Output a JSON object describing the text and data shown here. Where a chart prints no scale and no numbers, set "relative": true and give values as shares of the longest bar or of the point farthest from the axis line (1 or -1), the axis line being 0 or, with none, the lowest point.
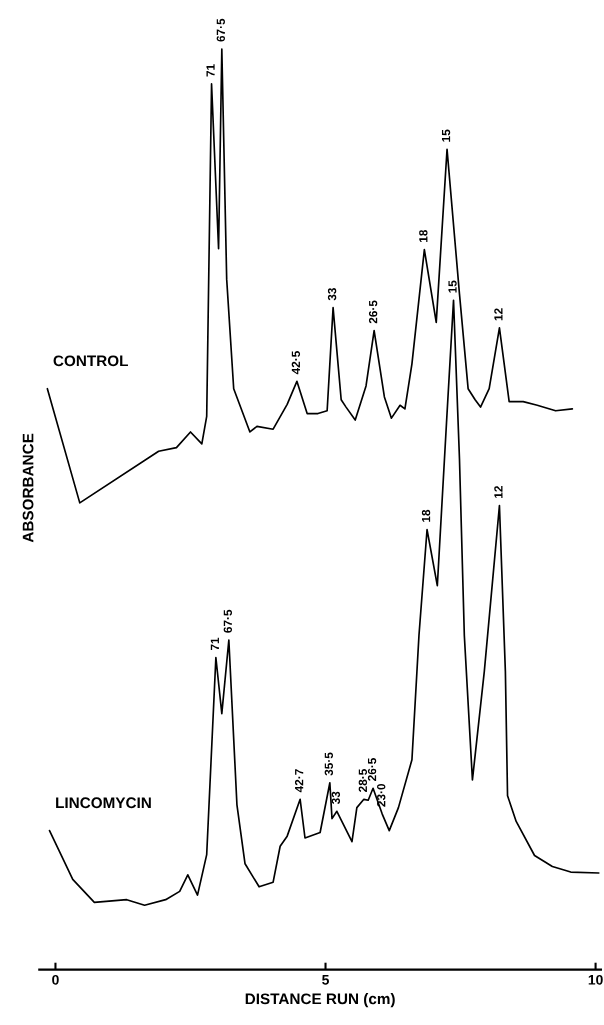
{
  "chart_data": {
    "type": "line",
    "relative": true,
    "xlabel": "DISTANCE RUN (cm)",
    "ylabel": "ABSORBANCE",
    "xlim": [
      -0.3,
      10.1
    ],
    "xticks": [
      0,
      5,
      10
    ],
    "tick_labels": "x",
    "grid": false,
    "legend": false,
    "marker": "none",
    "line_style": "solid",
    "series": [
      {
        "name": "CONTROL",
        "color": "#000000",
        "x": [
          -0.15,
          0.45,
          1.91,
          2.24,
          2.5,
          2.71,
          2.8,
          2.89,
          3.02,
          3.08,
          3.17,
          3.3,
          3.6,
          3.73,
          4.03,
          4.29,
          4.47,
          4.66,
          4.86,
          5.03,
          5.14,
          5.29,
          5.38,
          5.55,
          5.75,
          5.9,
          6.09,
          6.22,
          6.38,
          6.47,
          6.6,
          6.83,
          7.05,
          7.25,
          7.48,
          7.64,
          7.77,
          7.87,
          8.03,
          8.22,
          8.4,
          8.66,
          8.92,
          9.26,
          9.57
        ],
        "values": [
          0.631,
          0.507,
          0.563,
          0.567,
          0.584,
          0.571,
          0.601,
          0.962,
          0.783,
          1.0,
          0.75,
          0.631,
          0.584,
          0.59,
          0.587,
          0.614,
          0.639,
          0.604,
          0.604,
          0.607,
          0.719,
          0.619,
          0.611,
          0.597,
          0.634,
          0.694,
          0.622,
          0.599,
          0.613,
          0.609,
          0.658,
          0.782,
          0.703,
          0.891,
          0.734,
          0.631,
          0.619,
          0.611,
          0.631,
          0.697,
          0.617,
          0.617,
          0.613,
          0.607,
          0.609
        ]
      },
      {
        "name": "LINCOMYCIN",
        "color": "#000000",
        "x": [
          -0.11,
          0.06,
          0.32,
          0.72,
          1.32,
          1.65,
          2.04,
          2.3,
          2.45,
          2.63,
          2.8,
          2.97,
          3.08,
          3.21,
          3.36,
          3.51,
          3.77,
          4.03,
          4.16,
          4.29,
          4.53,
          4.62,
          4.9,
          5.08,
          5.12,
          5.21,
          5.49,
          5.58,
          5.71,
          5.79,
          5.88,
          6.05,
          6.18,
          6.35,
          6.6,
          6.73,
          6.88,
          7.07,
          7.24,
          7.37,
          7.48,
          7.57,
          7.72,
          7.94,
          8.22,
          8.33,
          8.37,
          8.53,
          8.87,
          9.2,
          9.54,
          10.06
        ],
        "values": [
          0.151,
          0.13,
          0.098,
          0.073,
          0.076,
          0.07,
          0.076,
          0.085,
          0.103,
          0.081,
          0.125,
          0.339,
          0.278,
          0.358,
          0.179,
          0.115,
          0.09,
          0.095,
          0.134,
          0.145,
          0.185,
          0.143,
          0.149,
          0.203,
          0.164,
          0.172,
          0.139,
          0.176,
          0.185,
          0.184,
          0.197,
          0.169,
          0.151,
          0.176,
          0.228,
          0.363,
          0.478,
          0.417,
          0.594,
          0.727,
          0.555,
          0.363,
          0.206,
          0.324,
          0.504,
          0.324,
          0.189,
          0.161,
          0.124,
          0.112,
          0.106,
          0.105
        ]
      }
    ],
    "annotations": [
      {
        "text": "71",
        "x": 2.89,
        "y": 0.962
      },
      {
        "text": "67·5",
        "x": 3.08,
        "y": 1.0
      },
      {
        "text": "42·5",
        "x": 4.47,
        "y": 0.639
      },
      {
        "text": "33",
        "x": 5.14,
        "y": 0.719
      },
      {
        "text": "26·5",
        "x": 5.9,
        "y": 0.694
      },
      {
        "text": "18",
        "x": 6.83,
        "y": 0.782
      },
      {
        "text": "15",
        "x": 7.25,
        "y": 0.891
      },
      {
        "text": "12",
        "x": 8.22,
        "y": 0.697
      },
      {
        "text": "71",
        "x": 2.97,
        "y": 0.339
      },
      {
        "text": "67·5",
        "x": 3.21,
        "y": 0.358
      },
      {
        "text": "42·7",
        "x": 4.53,
        "y": 0.185
      },
      {
        "text": "35·5",
        "x": 5.08,
        "y": 0.203
      },
      {
        "text": "33",
        "x": 5.21,
        "y": 0.172
      },
      {
        "text": "28·5",
        "x": 5.71,
        "y": 0.185
      },
      {
        "text": "26·5",
        "x": 5.88,
        "y": 0.197
      },
      {
        "text": "23·0",
        "x": 6.05,
        "y": 0.169
      },
      {
        "text": "18",
        "x": 6.88,
        "y": 0.478
      },
      {
        "text": "15",
        "x": 7.37,
        "y": 0.727
      },
      {
        "text": "12",
        "x": 8.22,
        "y": 0.504
      }
    ]
  }
}
